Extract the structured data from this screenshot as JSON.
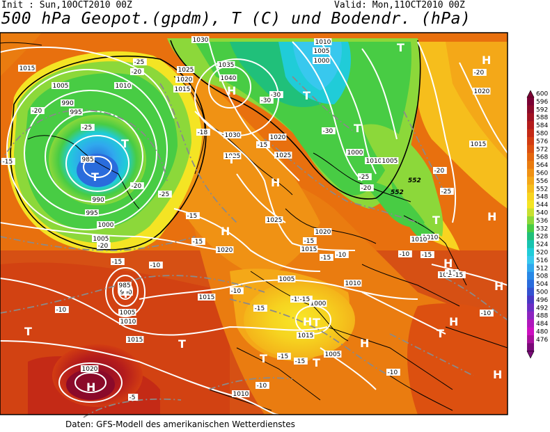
{
  "header": {
    "init": "Init : Sun,10OCT2010 00Z",
    "valid": "Valid: Mon,11OCT2010 00Z",
    "title": "500 hPa Geopot.(gpdm), T (C) und Bodendr. (hPa)"
  },
  "footer": {
    "source": "Daten: GFS-Modell des amerikanischen Wetterdienstes"
  },
  "legend": {
    "levels": [
      "600",
      "596",
      "592",
      "588",
      "584",
      "580",
      "576",
      "572",
      "568",
      "564",
      "560",
      "556",
      "552",
      "548",
      "544",
      "540",
      "536",
      "532",
      "528",
      "524",
      "520",
      "516",
      "512",
      "508",
      "504",
      "500",
      "496",
      "492",
      "488",
      "484",
      "480",
      "476"
    ],
    "colors": [
      "#7a0033",
      "#8b0a2a",
      "#a01222",
      "#b41c1c",
      "#c42a16",
      "#d23c12",
      "#dc5010",
      "#e4660e",
      "#ea7c10",
      "#f09214",
      "#f4a818",
      "#f6be1c",
      "#f8d420",
      "#f4e424",
      "#c8e030",
      "#8cd83a",
      "#48cc44",
      "#20c07a",
      "#18c4b0",
      "#20ccd8",
      "#38c8ee",
      "#30a8ee",
      "#2888e6",
      "#2a6cdc",
      "#3452d0",
      "#4838c4",
      "#6a2ec4",
      "#8c24c0",
      "#b018bc",
      "#cc10c0",
      "#a8109c",
      "#7a0a78"
    ]
  },
  "isobars": [
    {
      "label": "1015"
    },
    {
      "label": "1005"
    },
    {
      "label": "1010"
    },
    {
      "label": "990"
    },
    {
      "label": "995"
    },
    {
      "label": "985"
    },
    {
      "label": "990"
    },
    {
      "label": "995"
    },
    {
      "label": "1000"
    },
    {
      "label": "1005"
    },
    {
      "label": "1030"
    },
    {
      "label": "1025"
    },
    {
      "label": "1020"
    },
    {
      "label": "1015"
    },
    {
      "label": "1035"
    },
    {
      "label": "1040"
    },
    {
      "label": "1030"
    },
    {
      "label": "1025"
    },
    {
      "label": "1020"
    },
    {
      "label": "1025"
    },
    {
      "label": "1010"
    },
    {
      "label": "1005"
    },
    {
      "label": "1000"
    },
    {
      "label": "1000"
    },
    {
      "label": "1010"
    },
    {
      "label": "1005"
    },
    {
      "label": "1020"
    },
    {
      "label": "1015"
    },
    {
      "label": "1025"
    },
    {
      "label": "1020"
    },
    {
      "label": "1015"
    },
    {
      "label": "1005"
    },
    {
      "label": "1000"
    },
    {
      "label": "1005"
    },
    {
      "label": "1010"
    },
    {
      "label": "1015"
    },
    {
      "label": "1010"
    },
    {
      "label": "1010"
    },
    {
      "label": "1015"
    },
    {
      "label": "985"
    },
    {
      "label": "990"
    },
    {
      "label": "1005"
    },
    {
      "label": "1010"
    },
    {
      "label": "1015"
    },
    {
      "label": "1020"
    },
    {
      "label": "1010"
    },
    {
      "label": "1015"
    },
    {
      "label": "1020"
    }
  ],
  "temperatures": [
    {
      "label": "-15"
    },
    {
      "label": "-20"
    },
    {
      "label": "-25"
    },
    {
      "label": "-20"
    },
    {
      "label": "-25"
    },
    {
      "label": "-30"
    },
    {
      "label": "-30"
    },
    {
      "label": "-20"
    },
    {
      "label": "-15"
    },
    {
      "label": "-15"
    },
    {
      "label": "-20"
    },
    {
      "label": "-25"
    },
    {
      "label": "-18"
    },
    {
      "label": "-15"
    },
    {
      "label": "-15"
    },
    {
      "label": "-15"
    },
    {
      "label": "-15"
    },
    {
      "label": "-15"
    },
    {
      "label": "-15"
    },
    {
      "label": "-10"
    },
    {
      "label": "-15"
    },
    {
      "label": "-10"
    },
    {
      "label": "-15"
    },
    {
      "label": "-15"
    },
    {
      "label": "-10"
    },
    {
      "label": "-10"
    },
    {
      "label": "-10"
    },
    {
      "label": "-10"
    },
    {
      "label": "-10"
    },
    {
      "label": "-5"
    },
    {
      "label": "-20"
    },
    {
      "label": "-25"
    },
    {
      "label": "-20"
    },
    {
      "label": "-15"
    },
    {
      "label": "-10"
    },
    {
      "label": "-15"
    },
    {
      "label": "-20"
    },
    {
      "label": "-25"
    },
    {
      "label": "-30"
    },
    {
      "label": "-10"
    }
  ],
  "geopotential_labels": [
    {
      "label": "552"
    },
    {
      "label": "552"
    }
  ],
  "pressure_centers": [
    {
      "type": "T"
    },
    {
      "type": "T"
    },
    {
      "type": "T"
    },
    {
      "type": "T"
    },
    {
      "type": "T"
    },
    {
      "type": "T"
    },
    {
      "type": "T"
    },
    {
      "type": "T"
    },
    {
      "type": "T"
    },
    {
      "type": "T"
    },
    {
      "type": "T"
    },
    {
      "type": "T"
    },
    {
      "type": "T"
    },
    {
      "type": "T"
    },
    {
      "type": "H"
    },
    {
      "type": "H"
    },
    {
      "type": "H"
    },
    {
      "type": "H"
    },
    {
      "type": "H"
    },
    {
      "type": "H"
    },
    {
      "type": "H"
    },
    {
      "type": "H"
    },
    {
      "type": "H"
    },
    {
      "type": "H"
    },
    {
      "type": "H"
    },
    {
      "type": "H"
    }
  ]
}
